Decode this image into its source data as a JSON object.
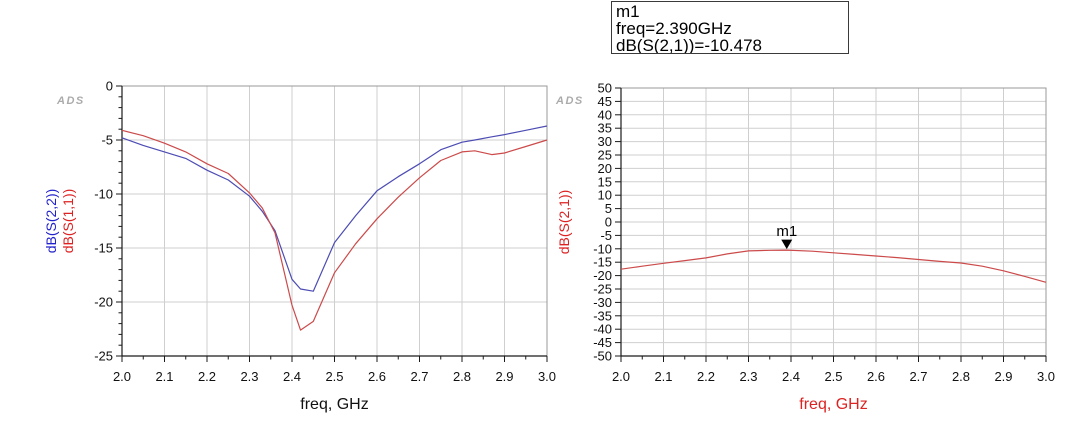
{
  "marker_readout": {
    "lines": [
      "m1",
      "freq=2.390GHz",
      "dB(S(2,1))=-10.478"
    ]
  },
  "watermark_label": "ADS",
  "colors": {
    "grid": "#cfcfcf",
    "frame": "#999999",
    "axis": "#1a1a1a",
    "text": "#111111",
    "watermark": "#ababab",
    "trace_red": "#cc4a4a",
    "trace_blue": "#4c4cb4",
    "label_red": "#dd2222",
    "label_blue": "#2222cc"
  },
  "chart_data": [
    {
      "type": "line",
      "name": "reflection-plot",
      "title": "",
      "xlabel": "freq, GHz",
      "xlabel_color": "#111111",
      "ylabel_lines": [
        {
          "text": "dB(S(2,2))",
          "color": "#2222cc"
        },
        {
          "text": "dB(S(1,1))",
          "color": "#dd2222"
        }
      ],
      "xlim": [
        2.0,
        3.0
      ],
      "ylim": [
        -25,
        0
      ],
      "x_major_step": 0.1,
      "x_minor_step": 0.05,
      "y_major_step": 5,
      "y_minor_step": 1,
      "grid": true,
      "x": [
        2.0,
        2.05,
        2.1,
        2.15,
        2.2,
        2.25,
        2.3,
        2.33,
        2.36,
        2.4,
        2.42,
        2.45,
        2.5,
        2.55,
        2.6,
        2.65,
        2.7,
        2.75,
        2.8,
        2.83,
        2.87,
        2.9,
        2.95,
        3.0
      ],
      "series": [
        {
          "id": "s22",
          "name": "dB(S(2,2))",
          "color": "#4c4cb4",
          "values": [
            -4.8,
            -5.5,
            -6.1,
            -6.7,
            -7.8,
            -8.7,
            -10.2,
            -11.6,
            -13.4,
            -17.9,
            -18.8,
            -19.0,
            -14.5,
            -12.0,
            -9.7,
            -8.4,
            -7.2,
            -5.9,
            -5.2,
            -5.0,
            -4.7,
            -4.5,
            -4.1,
            -3.7
          ]
        },
        {
          "id": "s11",
          "name": "dB(S(1,1))",
          "color": "#cc4a4a",
          "values": [
            -4.1,
            -4.6,
            -5.3,
            -6.1,
            -7.2,
            -8.1,
            -9.9,
            -11.3,
            -13.6,
            -20.3,
            -22.6,
            -21.8,
            -17.3,
            -14.6,
            -12.3,
            -10.3,
            -8.5,
            -6.9,
            -6.1,
            -6.0,
            -6.35,
            -6.2,
            -5.6,
            -5.0
          ]
        }
      ]
    },
    {
      "type": "line",
      "name": "transmission-plot",
      "title": "",
      "xlabel": "freq, GHz",
      "xlabel_color": "#dd2222",
      "ylabel_lines": [
        {
          "text": "dB(S(2,1))",
          "color": "#dd2222"
        }
      ],
      "xlim": [
        2.0,
        3.0
      ],
      "ylim": [
        -50,
        50
      ],
      "x_major_step": 0.1,
      "x_minor_step": 0.05,
      "y_major_step": 5,
      "y_minor_step": null,
      "grid": true,
      "x": [
        2.0,
        2.05,
        2.1,
        2.15,
        2.2,
        2.25,
        2.3,
        2.35,
        2.39,
        2.45,
        2.5,
        2.55,
        2.6,
        2.65,
        2.7,
        2.75,
        2.8,
        2.85,
        2.9,
        2.95,
        3.0
      ],
      "series": [
        {
          "id": "s21",
          "name": "dB(S(2,1))",
          "color": "#cc4a4a",
          "values": [
            -17.6,
            -16.5,
            -15.4,
            -14.4,
            -13.4,
            -11.9,
            -10.8,
            -10.55,
            -10.478,
            -10.9,
            -11.5,
            -12.1,
            -12.7,
            -13.3,
            -14.0,
            -14.7,
            -15.3,
            -16.5,
            -18.2,
            -20.3,
            -22.5
          ]
        }
      ],
      "marker": {
        "label": "m1",
        "freq": 2.39,
        "value": -10.478
      }
    }
  ]
}
